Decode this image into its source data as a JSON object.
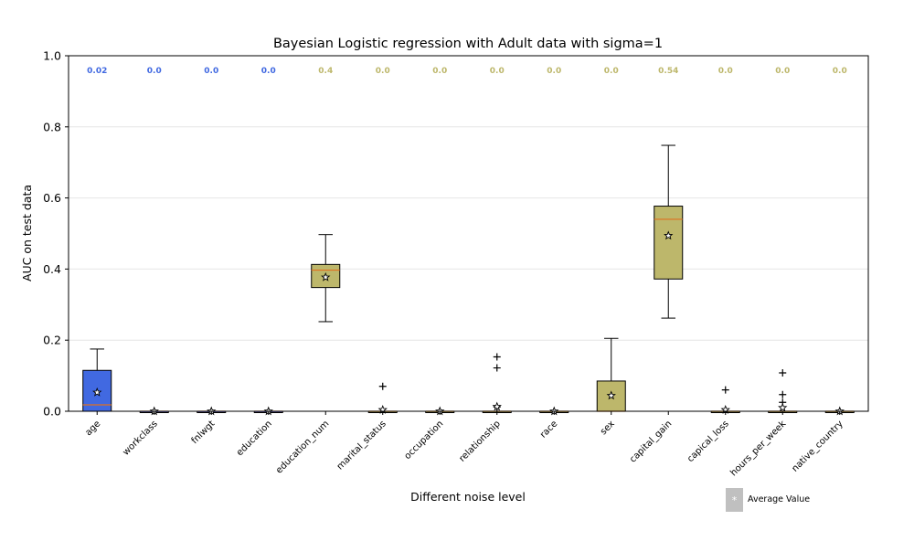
{
  "chart_data": {
    "type": "box",
    "title": "Bayesian Logistic regression with Adult data with sigma=1",
    "xlabel": "Different noise level",
    "ylabel": "AUC on test data",
    "ylim": [
      0.0,
      1.0
    ],
    "yticks": [
      "0.0",
      "0.2",
      "0.4",
      "0.6",
      "0.8",
      "1.0"
    ],
    "grid": "horizontal",
    "legend": {
      "placement": "bottom-right",
      "label": "Average Value",
      "marker": "*"
    },
    "colors": {
      "highlight": "#4169E1",
      "default": "#BDB76B",
      "median": "#E07020",
      "legend_patch": "#C0C0C0"
    },
    "categories": [
      "age",
      "workclass",
      "fnlwgt",
      "education",
      "education_num",
      "marital_status",
      "occupation",
      "relationship",
      "race",
      "sex",
      "capital_gain",
      "capical_loss",
      "hours_per_week",
      "native_country"
    ],
    "top_labels": [
      "0.02",
      "0.0",
      "0.0",
      "0.0",
      "0.4",
      "0.0",
      "0.0",
      "0.0",
      "0.0",
      "0.0",
      "0.54",
      "0.0",
      "0.0",
      "0.0"
    ],
    "boxes": [
      {
        "whislo": 0.0,
        "q1": 0.0,
        "med": 0.018,
        "q3": 0.115,
        "whishi": 0.175,
        "mean": 0.053,
        "fliers": [],
        "color": "#4169E1"
      },
      {
        "whislo": 0.0,
        "q1": 0.0,
        "med": 0.0,
        "q3": 0.0,
        "whishi": 0.0,
        "mean": 0.0,
        "fliers": [],
        "color": "#4169E1"
      },
      {
        "whislo": 0.0,
        "q1": 0.0,
        "med": 0.0,
        "q3": 0.0,
        "whishi": 0.0,
        "mean": 0.0,
        "fliers": [],
        "color": "#4169E1"
      },
      {
        "whislo": 0.0,
        "q1": 0.0,
        "med": 0.0,
        "q3": 0.0,
        "whishi": 0.0,
        "mean": 0.0,
        "fliers": [],
        "color": "#4169E1"
      },
      {
        "whislo": 0.252,
        "q1": 0.348,
        "med": 0.397,
        "q3": 0.413,
        "whishi": 0.497,
        "mean": 0.377,
        "fliers": [],
        "color": "#BDB76B"
      },
      {
        "whislo": 0.0,
        "q1": 0.0,
        "med": 0.0,
        "q3": 0.0,
        "whishi": 0.0,
        "mean": 0.004,
        "fliers": [
          0.07
        ],
        "color": "#BDB76B"
      },
      {
        "whislo": 0.0,
        "q1": 0.0,
        "med": 0.0,
        "q3": 0.0,
        "whishi": 0.0,
        "mean": 0.0,
        "fliers": [],
        "color": "#BDB76B"
      },
      {
        "whislo": 0.0,
        "q1": 0.0,
        "med": 0.0,
        "q3": 0.0,
        "whishi": 0.0,
        "mean": 0.013,
        "fliers": [
          0.153,
          0.122,
          0.012
        ],
        "color": "#BDB76B"
      },
      {
        "whislo": 0.0,
        "q1": 0.0,
        "med": 0.0,
        "q3": 0.0,
        "whishi": 0.0,
        "mean": 0.0,
        "fliers": [],
        "color": "#BDB76B"
      },
      {
        "whislo": 0.0,
        "q1": 0.0,
        "med": 0.0,
        "q3": 0.085,
        "whishi": 0.205,
        "mean": 0.044,
        "fliers": [],
        "color": "#BDB76B"
      },
      {
        "whislo": 0.262,
        "q1": 0.372,
        "med": 0.54,
        "q3": 0.577,
        "whishi": 0.748,
        "mean": 0.494,
        "fliers": [],
        "color": "#BDB76B"
      },
      {
        "whislo": 0.0,
        "q1": 0.0,
        "med": 0.0,
        "q3": 0.0,
        "whishi": 0.0,
        "mean": 0.004,
        "fliers": [
          0.06
        ],
        "color": "#BDB76B"
      },
      {
        "whislo": 0.0,
        "q1": 0.0,
        "med": 0.0,
        "q3": 0.0,
        "whishi": 0.0,
        "mean": 0.01,
        "fliers": [
          0.108,
          0.047,
          0.025
        ],
        "color": "#BDB76B"
      },
      {
        "whislo": 0.0,
        "q1": 0.0,
        "med": 0.0,
        "q3": 0.0,
        "whishi": 0.0,
        "mean": 0.0,
        "fliers": [],
        "color": "#BDB76B"
      }
    ]
  }
}
